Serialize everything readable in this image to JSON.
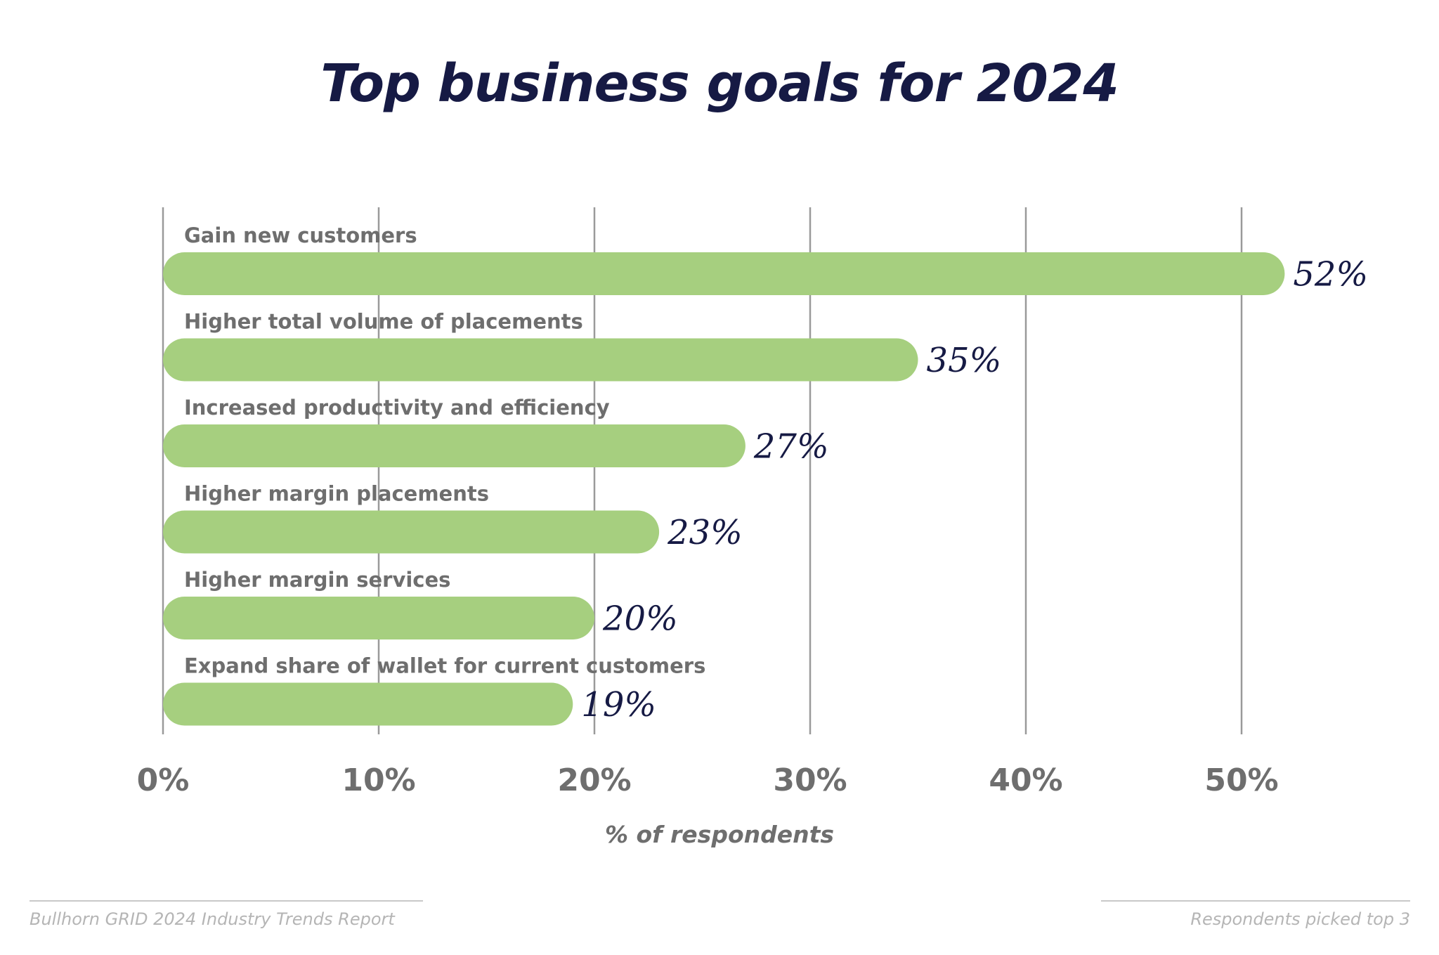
{
  "chart_data": {
    "type": "bar",
    "orientation": "horizontal",
    "title": "Top business goals for 2024",
    "xlabel": "% of respondents",
    "ylabel": "",
    "categories": [
      "Gain new customers",
      "Higher total volume of placements",
      "Increased productivity and efficiency",
      "Higher margin placements",
      "Higher margin services",
      "Expand share of wallet for current customers"
    ],
    "values": [
      52,
      35,
      27,
      23,
      20,
      19
    ],
    "value_labels": [
      "52%",
      "35%",
      "27%",
      "23%",
      "20%",
      "19%"
    ],
    "xlim": [
      0,
      50
    ],
    "xticks": [
      0,
      10,
      20,
      30,
      40,
      50
    ],
    "xtick_labels": [
      "0%",
      "10%",
      "20%",
      "30%",
      "40%",
      "50%"
    ],
    "grid": true,
    "colors": {
      "bar": "#a6cf7f",
      "title": "#161a44",
      "value_label": "#161a44",
      "label": "#6e6e6e",
      "grid": "#9a9a9a",
      "footer": "#b5b5b5"
    }
  },
  "footer": {
    "source": "Bullhorn GRID 2024 Industry Trends Report",
    "note": "Respondents picked top 3"
  }
}
